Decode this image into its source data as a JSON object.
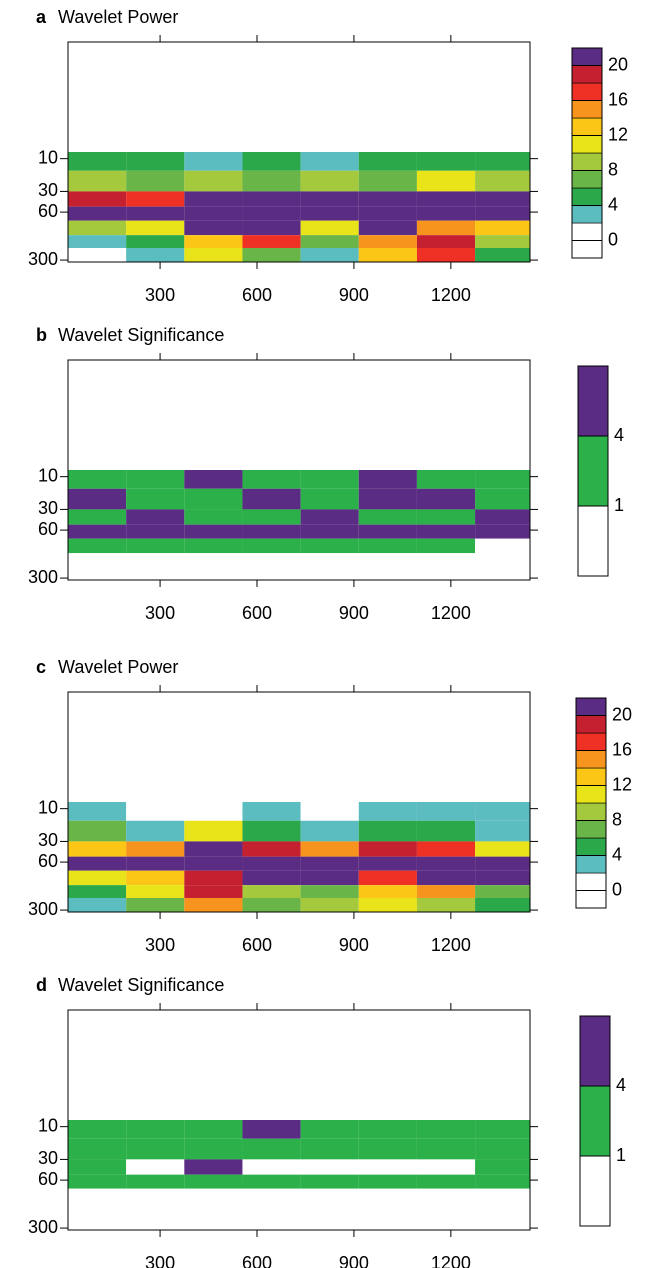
{
  "chart_data": [
    {
      "type": "contour",
      "label": "a",
      "title": "Wavelet Power",
      "xlim": [
        15,
        1445
      ],
      "xticks": [
        300,
        600,
        900,
        1200
      ],
      "ylim": [
        0.2,
        320
      ],
      "yticks": [
        10,
        30,
        60,
        300
      ],
      "log_y": true,
      "y_inverted": true,
      "x_bins": [
        15,
        195,
        375,
        555,
        735,
        915,
        1095,
        1275,
        1445
      ],
      "y_bins": [
        0.2,
        8,
        15,
        30,
        50,
        80,
        130,
        200,
        320
      ],
      "z": [
        [
          0,
          1,
          0,
          0,
          1,
          0,
          0,
          1
        ],
        [
          4,
          5,
          3,
          4,
          3,
          5,
          4,
          4
        ],
        [
          9,
          7,
          8,
          6,
          9,
          6,
          10,
          8
        ],
        [
          18,
          16,
          22,
          21,
          20,
          22,
          22,
          21
        ],
        [
          22,
          22,
          22,
          22,
          22,
          22,
          22,
          22
        ],
        [
          8,
          10,
          22,
          20,
          10,
          22,
          14,
          12
        ],
        [
          3,
          5,
          12,
          16,
          6,
          14,
          18,
          8
        ],
        [
          0,
          2,
          10,
          6,
          3,
          12,
          16,
          4
        ]
      ],
      "colorbar": {
        "clim": [
          -2,
          22
        ],
        "ticks": [
          0,
          4,
          8,
          12,
          16,
          20
        ],
        "colors": [
          "#ffffff",
          "#ffffff",
          "#5bbdc0",
          "#2aa84a",
          "#6ab547",
          "#a4c93c",
          "#e8e419",
          "#fbc616",
          "#f7941d",
          "#ee3124",
          "#c4202f",
          "#5b2c83"
        ]
      }
    },
    {
      "type": "contour",
      "label": "b",
      "title": "Wavelet Significance",
      "xlim": [
        15,
        1445
      ],
      "xticks": [
        300,
        600,
        900,
        1200
      ],
      "ylim": [
        0.2,
        320
      ],
      "yticks": [
        10,
        30,
        60,
        300
      ],
      "log_y": true,
      "y_inverted": true,
      "x_bins": [
        15,
        195,
        375,
        555,
        735,
        915,
        1095,
        1275,
        1445
      ],
      "y_bins": [
        0.2,
        8,
        15,
        30,
        50,
        80,
        130,
        200,
        320
      ],
      "z": [
        [
          0,
          0,
          0,
          0,
          0,
          0,
          0,
          0
        ],
        [
          2,
          2,
          5,
          2,
          2,
          5,
          2,
          2
        ],
        [
          5,
          2,
          2,
          5,
          2,
          5,
          5,
          2
        ],
        [
          2,
          5,
          2,
          2,
          5,
          2,
          2,
          5
        ],
        [
          5,
          5,
          5,
          5,
          5,
          5,
          5,
          5
        ],
        [
          2,
          2,
          2,
          2,
          2,
          2,
          2,
          0
        ],
        [
          0,
          0,
          0,
          0,
          0,
          0,
          0,
          0
        ],
        [
          0,
          0,
          0,
          0,
          0,
          0,
          0,
          0
        ]
      ],
      "colorbar": {
        "clim": [
          -2,
          7
        ],
        "ticks": [
          1,
          4
        ],
        "colors": [
          "#ffffff",
          "#2bb04a",
          "#5b2c83"
        ]
      }
    },
    {
      "type": "contour",
      "label": "c",
      "title": "Wavelet Power",
      "xlim": [
        15,
        1445
      ],
      "xticks": [
        300,
        600,
        900,
        1200
      ],
      "ylim": [
        0.2,
        320
      ],
      "yticks": [
        10,
        30,
        60,
        300
      ],
      "log_y": true,
      "y_inverted": true,
      "x_bins": [
        15,
        195,
        375,
        555,
        735,
        915,
        1095,
        1275,
        1445
      ],
      "y_bins": [
        0.2,
        8,
        15,
        30,
        50,
        80,
        130,
        200,
        320
      ],
      "z": [
        [
          0,
          0,
          0,
          0,
          0,
          0,
          0,
          0
        ],
        [
          2,
          0,
          1,
          3,
          0,
          2,
          3,
          2
        ],
        [
          6,
          3,
          10,
          5,
          2,
          5,
          4,
          3
        ],
        [
          12,
          14,
          22,
          18,
          14,
          18,
          16,
          10
        ],
        [
          22,
          22,
          22,
          22,
          22,
          22,
          22,
          22
        ],
        [
          10,
          12,
          18,
          22,
          22,
          16,
          22,
          20
        ],
        [
          4,
          10,
          18,
          8,
          6,
          12,
          14,
          6
        ],
        [
          2,
          6,
          14,
          6,
          8,
          10,
          8,
          4
        ]
      ],
      "colorbar": {
        "clim": [
          -2,
          22
        ],
        "ticks": [
          0,
          4,
          8,
          12,
          16,
          20
        ],
        "colors": [
          "#ffffff",
          "#ffffff",
          "#5bbdc0",
          "#2aa84a",
          "#6ab547",
          "#a4c93c",
          "#e8e419",
          "#fbc616",
          "#f7941d",
          "#ee3124",
          "#c4202f",
          "#5b2c83"
        ]
      }
    },
    {
      "type": "contour",
      "label": "d",
      "title": "Wavelet Significance",
      "xlim": [
        15,
        1445
      ],
      "xticks": [
        300,
        600,
        900,
        1200
      ],
      "ylim": [
        0.2,
        320
      ],
      "yticks": [
        10,
        30,
        60,
        300
      ],
      "log_y": true,
      "y_inverted": true,
      "x_bins": [
        15,
        195,
        375,
        555,
        735,
        915,
        1095,
        1275,
        1445
      ],
      "y_bins": [
        0.2,
        8,
        15,
        30,
        50,
        80,
        130,
        200,
        320
      ],
      "z": [
        [
          0,
          0,
          0,
          0,
          0,
          0,
          0,
          0
        ],
        [
          2,
          2,
          2,
          5,
          2,
          2,
          2,
          2
        ],
        [
          2,
          2,
          2,
          2,
          2,
          2,
          2,
          2
        ],
        [
          2,
          0,
          5,
          0,
          0,
          0,
          0,
          2
        ],
        [
          2,
          2,
          2,
          2,
          2,
          2,
          2,
          2
        ],
        [
          0,
          0,
          0,
          0,
          0,
          0,
          0,
          0
        ],
        [
          0,
          0,
          0,
          0,
          0,
          0,
          0,
          0
        ],
        [
          0,
          0,
          0,
          0,
          0,
          0,
          0,
          0
        ]
      ],
      "colorbar": {
        "clim": [
          -2,
          7
        ],
        "ticks": [
          1,
          4
        ],
        "colors": [
          "#ffffff",
          "#2bb04a",
          "#5b2c83"
        ]
      }
    }
  ]
}
